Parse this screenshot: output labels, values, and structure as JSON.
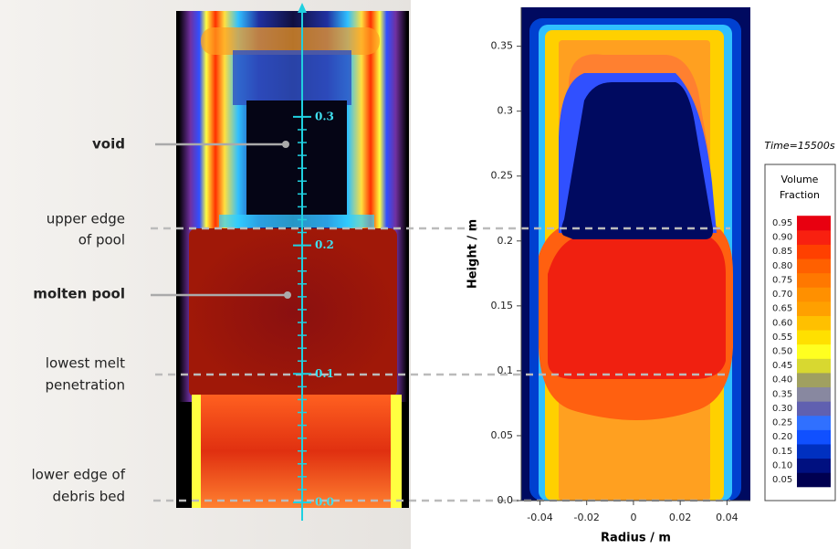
{
  "annotations": [
    {
      "lines": [
        "void"
      ],
      "bold": true
    },
    {
      "lines": [
        "upper edge",
        "of pool"
      ],
      "bold": false
    },
    {
      "lines": [
        "molten pool"
      ],
      "bold": true
    },
    {
      "lines": [
        "lowest melt",
        "penetration"
      ],
      "bold": false
    },
    {
      "lines": [
        "lower edge of",
        "debris bed"
      ],
      "bold": false
    }
  ],
  "image_axis": {
    "ticks": [
      {
        "value": 0,
        "label": "0.0"
      },
      0.1,
      0.2,
      0.3
    ]
  },
  "chart_data": {
    "type": "contour",
    "xlabel": "Radius / m",
    "ylabel": "Height / m",
    "xlim": [
      -0.048,
      0.05
    ],
    "ylim": [
      0,
      0.38
    ],
    "xticks": [
      -0.04,
      -0.02,
      0,
      0.02,
      0.04
    ],
    "yticks": [
      {
        "value": 0,
        "label": "0.0"
      },
      0.05,
      0.1,
      0.15,
      0.2,
      0.25,
      0.3,
      0.35
    ],
    "annotation": "Time=15500s",
    "colorbar": {
      "title": [
        "Volume",
        "Fraction"
      ],
      "ticks": [
        0.05,
        {
          "value": 0.1,
          "label": "0.10"
        },
        0.15,
        {
          "value": 0.2,
          "label": "0.20"
        },
        0.25,
        {
          "value": 0.3,
          "label": "0.30"
        },
        0.35,
        {
          "value": 0.4,
          "label": "0.40"
        },
        0.45,
        {
          "value": 0.5,
          "label": "0.50"
        },
        0.55,
        {
          "value": 0.6,
          "label": "0.60"
        },
        0.65,
        {
          "value": 0.7,
          "label": "0.70"
        },
        0.75,
        {
          "value": 0.8,
          "label": "0.80"
        },
        0.85,
        {
          "value": 0.9,
          "label": "0.90"
        },
        0.95
      ],
      "colors": [
        "#000050",
        "#001080",
        "#0030c0",
        "#1050ff",
        "#3070ff",
        "#6060b0",
        "#8888a0",
        "#a0a060",
        "#d8d830",
        "#ffff20",
        "#ffe000",
        "#ffc000",
        "#ffa000",
        "#ff9000",
        "#ff7800",
        "#ff6000",
        "#ff4000",
        "#f82010",
        "#e80010"
      ]
    }
  }
}
